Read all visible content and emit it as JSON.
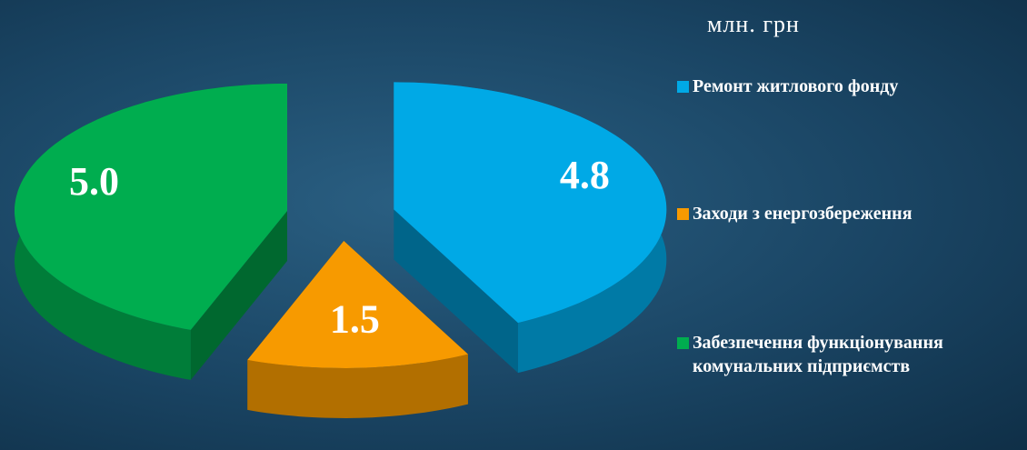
{
  "chart_data": {
    "type": "pie",
    "title": "млн. грн",
    "categories": [
      "Ремонт житлового фонду",
      "Заходи з енергозбереження",
      "Забезпечення функціонування комунальних підприємств"
    ],
    "values": [
      4.8,
      1.5,
      5.0
    ],
    "value_labels": [
      "4.8",
      "1.5",
      "5.0"
    ],
    "colors": [
      "#00a9e6",
      "#f79a00",
      "#00ad4f"
    ],
    "legend": "right"
  }
}
